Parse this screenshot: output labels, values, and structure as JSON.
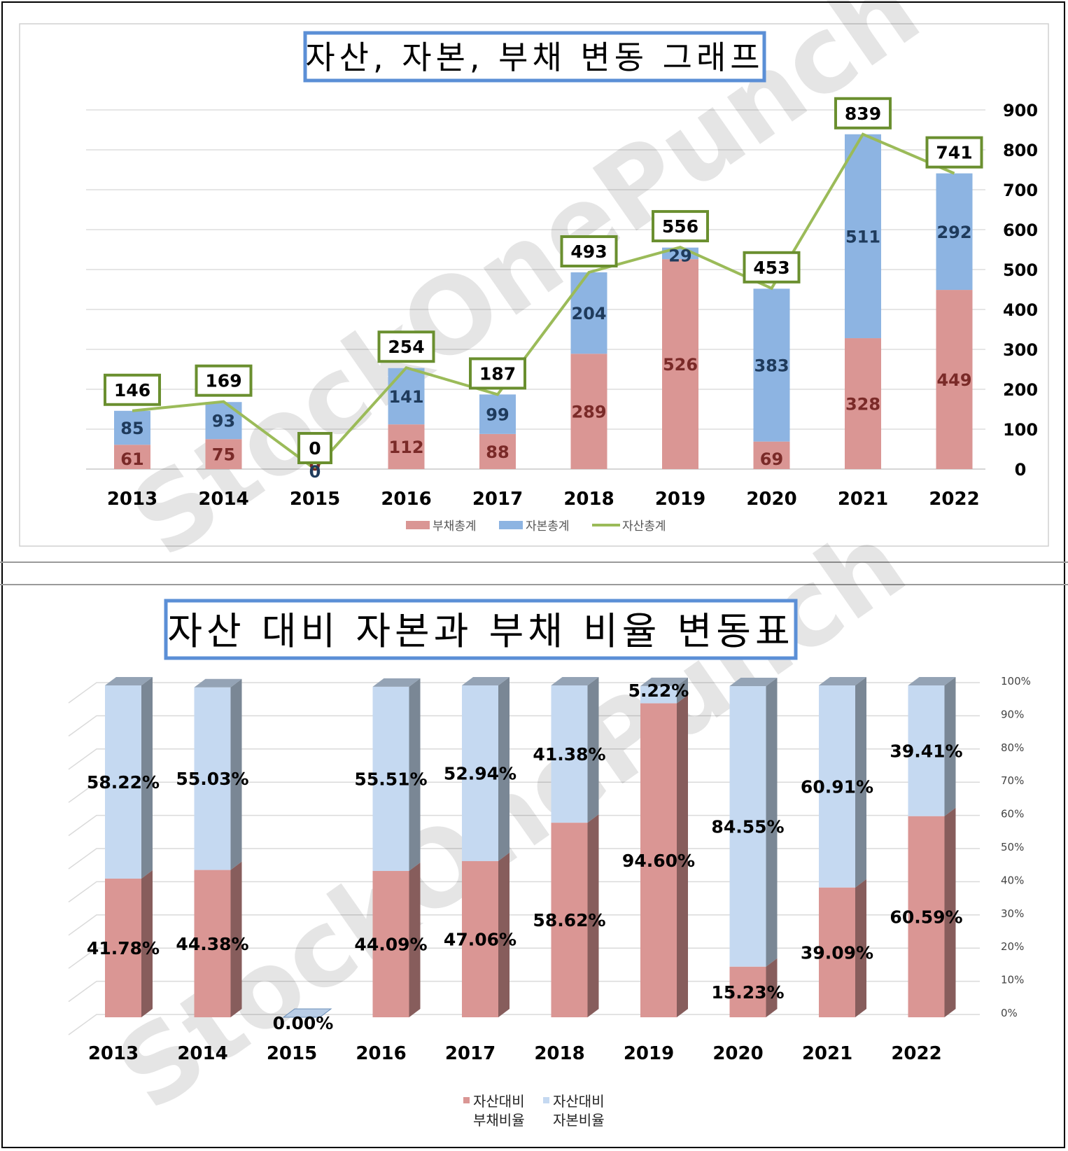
{
  "charts": [
    {
      "title": "자산, 자본, 부채 변동 그래프",
      "watermark": "StockOnePunch",
      "chart_data": {
        "type": "bar",
        "stacked": true,
        "categories": [
          "2013",
          "2014",
          "2015",
          "2016",
          "2017",
          "2018",
          "2019",
          "2020",
          "2021",
          "2022"
        ],
        "series": [
          {
            "name": "부채총계",
            "type": "bar",
            "color": "#da9694",
            "values": [
              61,
              75,
              0,
              112,
              88,
              289,
              526,
              69,
              328,
              449
            ]
          },
          {
            "name": "자본총계",
            "type": "bar",
            "color": "#8db4e2",
            "values": [
              85,
              93,
              0,
              141,
              99,
              204,
              29,
              383,
              511,
              292
            ]
          },
          {
            "name": "자산총계",
            "type": "line",
            "color": "#9bbb59",
            "values": [
              146,
              169,
              0,
              254,
              187,
              493,
              556,
              453,
              839,
              741
            ]
          }
        ],
        "y_axis": {
          "position": "right",
          "ylim": [
            0,
            900
          ],
          "ticks": [
            "0",
            "100",
            "200",
            "300",
            "400",
            "500",
            "600",
            "700",
            "800",
            "900"
          ]
        },
        "grid": true,
        "legend": "bottom"
      }
    },
    {
      "title": "자산 대비 자본과 부채 비율 변동표",
      "watermark": "StockOnePunch",
      "chart_data": {
        "type": "bar",
        "stacked": true,
        "percent": true,
        "style": "3d",
        "categories": [
          "2013",
          "2014",
          "2015",
          "2016",
          "2017",
          "2018",
          "2019",
          "2020",
          "2021",
          "2022"
        ],
        "series": [
          {
            "name_lines": [
              "자산대비",
              "부채비율"
            ],
            "color": "#da9694",
            "values": [
              41.78,
              44.38,
              0,
              44.09,
              47.06,
              58.62,
              94.6,
              15.23,
              39.09,
              60.59
            ],
            "labels": [
              "41.78%",
              "44.38%",
              "0.00%",
              "44.09%",
              "47.06%",
              "58.62%",
              "94.60%",
              "15.23%",
              "39.09%",
              "60.59%"
            ]
          },
          {
            "name_lines": [
              "자산대비",
              "자본비율"
            ],
            "color": "#c5d9f1",
            "values": [
              58.22,
              55.03,
              0,
              55.51,
              52.94,
              41.38,
              5.22,
              84.55,
              60.91,
              39.41
            ],
            "labels": [
              "58.22%",
              "55.03%",
              "",
              "55.51%",
              "52.94%",
              "41.38%",
              "5.22%",
              "84.55%",
              "60.91%",
              "39.41%"
            ]
          }
        ],
        "y_axis": {
          "position": "right",
          "ylim": [
            0,
            100
          ],
          "ticks": [
            "0%",
            "10%",
            "20%",
            "30%",
            "40%",
            "50%",
            "60%",
            "70%",
            "80%",
            "90%",
            "100%"
          ]
        },
        "grid": true,
        "legend": "bottom"
      }
    }
  ]
}
